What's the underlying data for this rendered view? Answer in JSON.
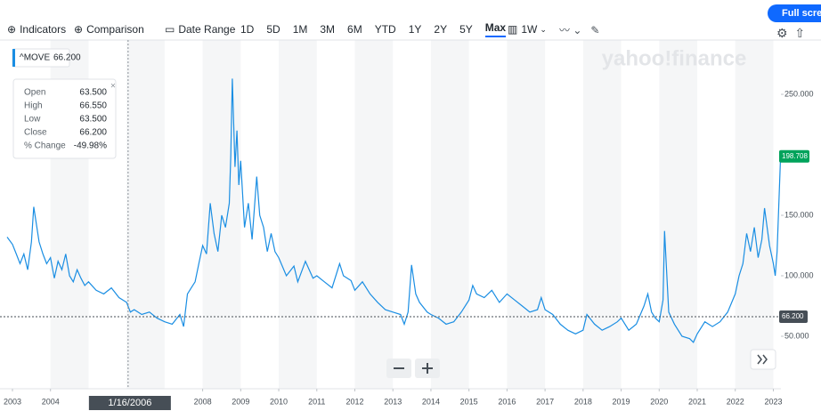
{
  "toolbar": {
    "indicators": "Indicators",
    "comparison": "Comparison",
    "date_range": "Date Range",
    "ranges": [
      "1D",
      "5D",
      "1M",
      "3M",
      "6M",
      "YTD",
      "1Y",
      "2Y",
      "5Y",
      "Max"
    ],
    "interval": "1W",
    "full_screen": "Full screen"
  },
  "chart_data": {
    "type": "line",
    "watermark": "yahoo!finance",
    "series": [
      {
        "name": "^MOVE",
        "color": "#1a8ee3",
        "x": [
          2002.86,
          2003.0,
          2003.1,
          2003.2,
          2003.3,
          2003.4,
          2003.5,
          2003.56,
          2003.7,
          2003.8,
          2003.9,
          2004.0,
          2004.1,
          2004.2,
          2004.3,
          2004.4,
          2004.5,
          2004.6,
          2004.7,
          2004.8,
          2004.9,
          2005.0,
          2005.2,
          2005.4,
          2005.6,
          2005.8,
          2006.0,
          2006.1,
          2006.2,
          2006.4,
          2006.6,
          2006.8,
          2007.0,
          2007.2,
          2007.4,
          2007.5,
          2007.6,
          2007.7,
          2007.8,
          2007.9,
          2008.0,
          2008.1,
          2008.2,
          2008.3,
          2008.4,
          2008.5,
          2008.6,
          2008.7,
          2008.74,
          2008.78,
          2008.85,
          2008.9,
          2008.95,
          2009.0,
          2009.1,
          2009.2,
          2009.3,
          2009.42,
          2009.5,
          2009.6,
          2009.7,
          2009.8,
          2009.9,
          2010.0,
          2010.2,
          2010.4,
          2010.5,
          2010.7,
          2010.9,
          2011.0,
          2011.2,
          2011.4,
          2011.6,
          2011.7,
          2011.9,
          2012.0,
          2012.2,
          2012.4,
          2012.6,
          2012.8,
          2013.0,
          2013.2,
          2013.3,
          2013.4,
          2013.49,
          2013.6,
          2013.7,
          2013.9,
          2014.0,
          2014.2,
          2014.4,
          2014.6,
          2014.8,
          2015.0,
          2015.1,
          2015.2,
          2015.4,
          2015.6,
          2015.8,
          2016.0,
          2016.2,
          2016.4,
          2016.6,
          2016.8,
          2016.9,
          2017.0,
          2017.2,
          2017.4,
          2017.6,
          2017.8,
          2018.0,
          2018.1,
          2018.3,
          2018.5,
          2018.7,
          2018.9,
          2019.0,
          2019.2,
          2019.4,
          2019.6,
          2019.7,
          2019.8,
          2019.9,
          2020.0,
          2020.1,
          2020.14,
          2020.25,
          2020.4,
          2020.6,
          2020.8,
          2020.9,
          2021.0,
          2021.2,
          2021.4,
          2021.6,
          2021.8,
          2022.0,
          2022.1,
          2022.2,
          2022.3,
          2022.4,
          2022.5,
          2022.6,
          2022.7,
          2022.77,
          2022.9,
          2023.0,
          2023.05,
          2023.1,
          2023.19
        ],
        "values": [
          132,
          126,
          118,
          110,
          118,
          105,
          128,
          157,
          128,
          118,
          110,
          115,
          98,
          112,
          105,
          118,
          100,
          95,
          105,
          98,
          92,
          95,
          88,
          85,
          90,
          82,
          78,
          70,
          72,
          68,
          70,
          65,
          62,
          60,
          68,
          58,
          85,
          90,
          95,
          110,
          125,
          118,
          160,
          135,
          120,
          150,
          140,
          160,
          200,
          263,
          190,
          220,
          175,
          195,
          140,
          160,
          130,
          182,
          150,
          140,
          120,
          135,
          120,
          115,
          100,
          108,
          95,
          112,
          98,
          100,
          95,
          90,
          110,
          100,
          96,
          88,
          95,
          85,
          78,
          72,
          70,
          68,
          60,
          70,
          109,
          85,
          78,
          70,
          68,
          65,
          60,
          62,
          70,
          80,
          92,
          85,
          82,
          88,
          78,
          85,
          80,
          75,
          70,
          72,
          82,
          72,
          68,
          60,
          55,
          52,
          55,
          68,
          60,
          55,
          58,
          62,
          65,
          55,
          60,
          75,
          85,
          70,
          65,
          62,
          80,
          137,
          70,
          60,
          50,
          48,
          45,
          52,
          62,
          58,
          62,
          70,
          85,
          100,
          110,
          135,
          120,
          140,
          115,
          130,
          156,
          125,
          110,
          100,
          120,
          198.708
        ]
      }
    ],
    "xlim": [
      2002.86,
      2023.2
    ],
    "ylim": [
      6.6,
      294.9
    ],
    "xticks": [
      2003,
      2004,
      2008,
      2009,
      2010,
      2011,
      2012,
      2013,
      2014,
      2015,
      2016,
      2017,
      2018,
      2019,
      2020,
      2021,
      2022,
      2023
    ],
    "yticks": [
      {
        "value": 50,
        "label": "50.000"
      },
      {
        "value": 100,
        "label": "100.000"
      },
      {
        "value": 150,
        "label": "150.000"
      },
      {
        "value": 250,
        "label": "250.000"
      }
    ],
    "last_price": {
      "value": 198.708,
      "label": "198.708",
      "color": "#00a35b"
    },
    "close_line": {
      "value": 66.2,
      "label": "66.200"
    },
    "crosshair": {
      "x": 2006.04,
      "label": "1/16/2006"
    },
    "legend": {
      "symbol": "^MOVE",
      "value": "66.200"
    },
    "tooltip": [
      {
        "label": "Open",
        "value": "63.500"
      },
      {
        "label": "High",
        "value": "66.550"
      },
      {
        "label": "Low",
        "value": "63.500"
      },
      {
        "label": "Close",
        "value": "66.200"
      },
      {
        "label": "% Change",
        "value": "-49.98%"
      }
    ]
  }
}
